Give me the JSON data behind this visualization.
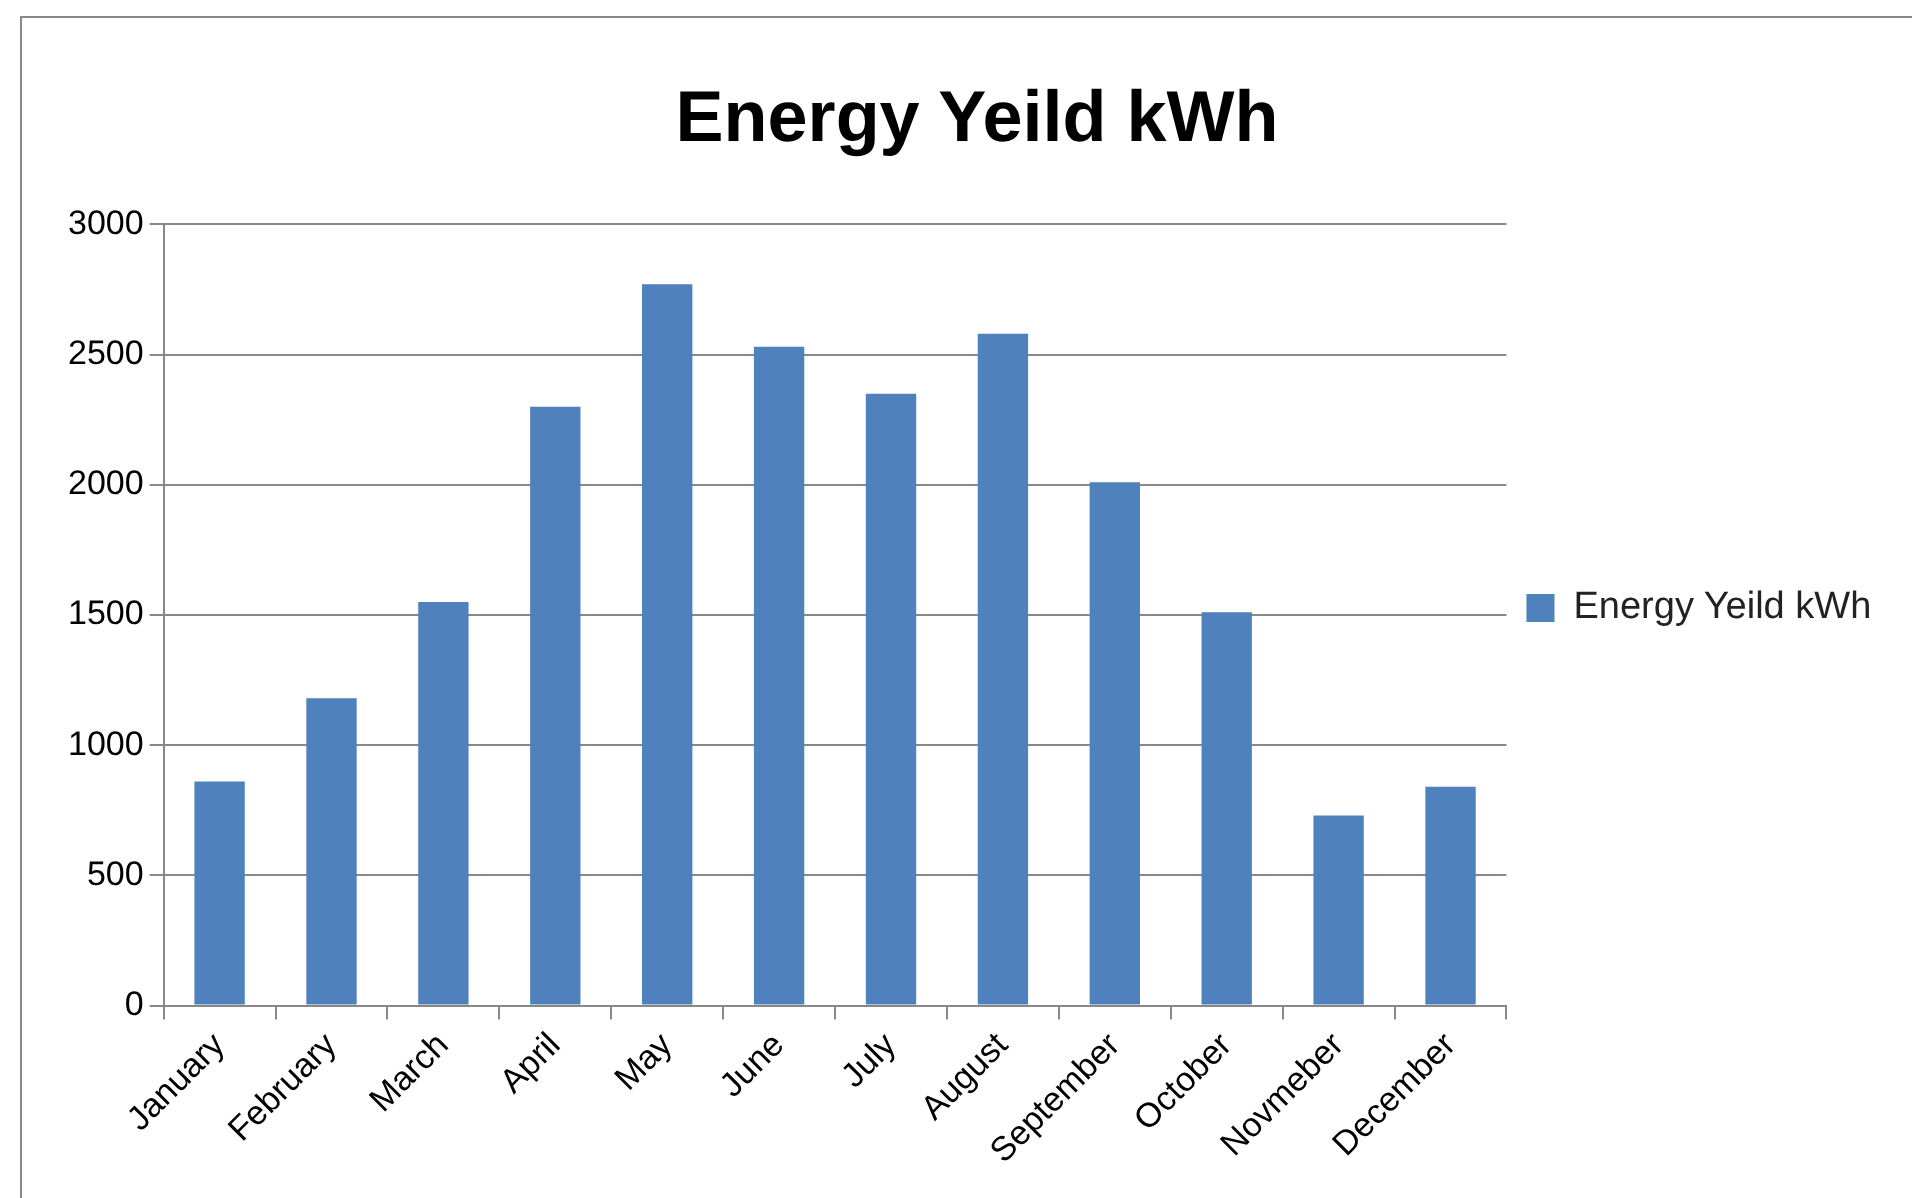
{
  "chart_data": {
    "type": "bar",
    "title": "Energy Yeild kWh",
    "categories": [
      "January",
      "February",
      "March",
      "April",
      "May",
      "June",
      "July",
      "August",
      "September",
      "October",
      "Novmeber",
      "December"
    ],
    "series": [
      {
        "name": "Energy Yeild kWh",
        "color": "#4f81bd",
        "values": [
          860,
          1180,
          1550,
          2300,
          2770,
          2530,
          2350,
          2580,
          2010,
          1510,
          730,
          840
        ]
      }
    ],
    "ylim": [
      0,
      3000
    ],
    "yticks": [
      0,
      500,
      1000,
      1500,
      2000,
      2500,
      3000
    ],
    "grid": "y",
    "legend": "right"
  }
}
